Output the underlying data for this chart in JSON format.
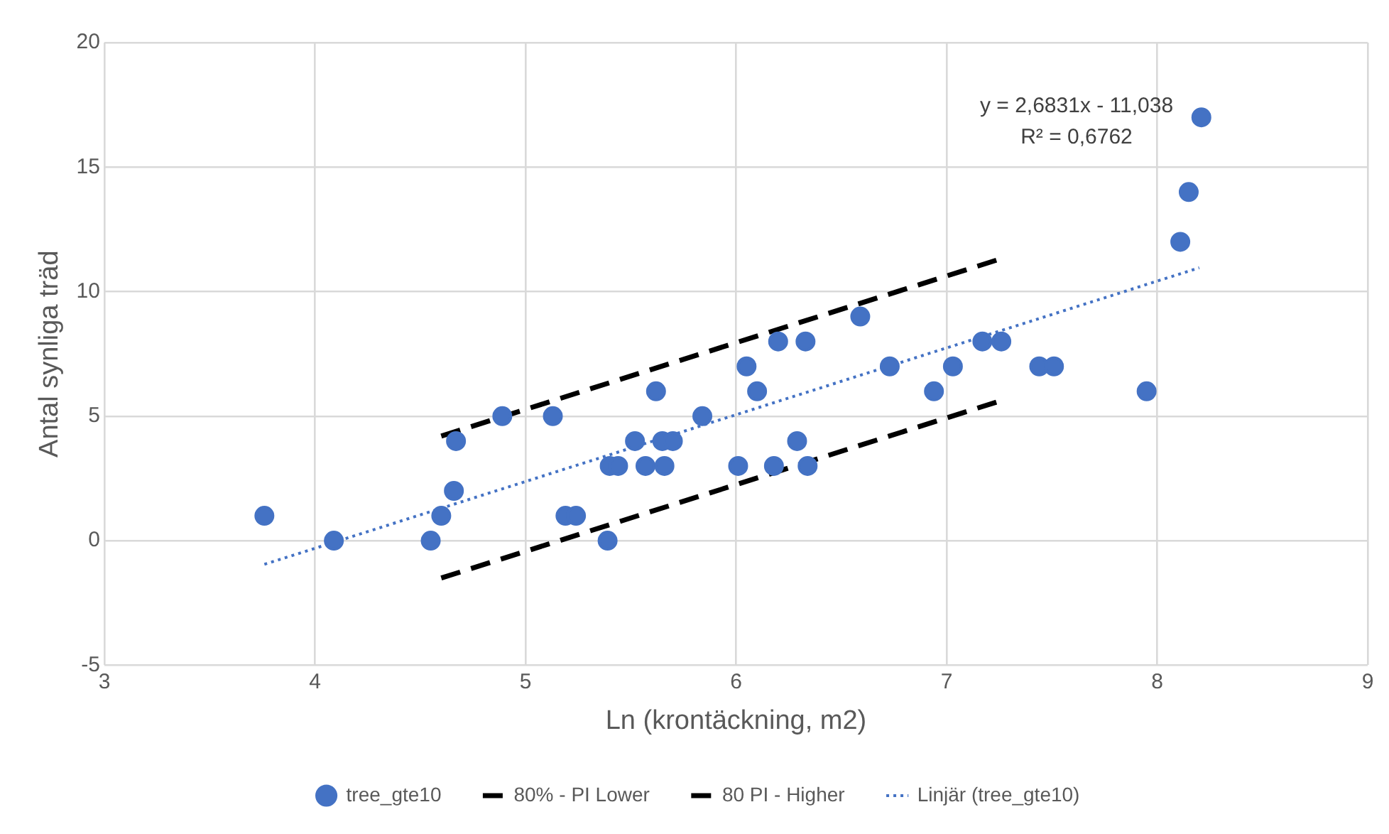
{
  "chart_data": {
    "type": "scatter",
    "xlabel": "Ln (krontäckning, m2)",
    "ylabel": "Antal synliga träd",
    "xlim": [
      3,
      9
    ],
    "xticks": [
      3,
      4,
      5,
      6,
      7,
      8,
      9
    ],
    "ylim": [
      -5,
      20
    ],
    "yticks": [
      -5,
      0,
      5,
      10,
      15,
      20
    ],
    "grid": true,
    "legend": "bottom",
    "annotations": [
      "y = 2,6831x - 11,038",
      "R² = 0,6762"
    ],
    "series": [
      {
        "name": "tree_gte10",
        "color": "#4472c4",
        "marker": "circle",
        "x": [
          3.76,
          4.09,
          4.55,
          4.6,
          4.66,
          4.67,
          4.89,
          5.13,
          5.19,
          5.24,
          5.39,
          5.4,
          5.44,
          5.52,
          5.57,
          5.62,
          5.65,
          5.66,
          5.7,
          5.84,
          6.01,
          6.05,
          6.1,
          6.18,
          6.2,
          6.29,
          6.33,
          6.34,
          6.59,
          6.73,
          6.94,
          7.03,
          7.17,
          7.26,
          7.44,
          7.51,
          7.95,
          8.11,
          8.15,
          8.21
        ],
        "values": [
          1,
          0,
          0,
          1,
          2,
          4,
          5,
          5,
          1,
          1,
          0,
          3,
          3,
          4,
          3,
          6,
          4,
          3,
          4,
          5,
          3,
          7,
          6,
          3,
          8,
          4,
          8,
          3,
          9,
          7,
          6,
          7,
          8,
          8,
          7,
          7,
          6,
          12,
          14,
          17
        ]
      },
      {
        "name": "80% - PI Lower",
        "type": "line",
        "color": "#000000",
        "line_style": "dashed",
        "marker": "none",
        "x": [
          4.6,
          7.25
        ],
        "values": [
          -1.5,
          5.6
        ]
      },
      {
        "name": "80 PI - Higher",
        "type": "line",
        "color": "#000000",
        "line_style": "dashed",
        "marker": "none",
        "x": [
          4.6,
          7.25
        ],
        "values": [
          4.2,
          11.3
        ]
      },
      {
        "name": "Linjär (tree_gte10)",
        "type": "line",
        "color": "#4472c4",
        "line_style": "dotted",
        "marker": "none",
        "x": [
          3.76,
          8.2
        ],
        "values": [
          -0.95,
          10.96
        ]
      }
    ]
  }
}
